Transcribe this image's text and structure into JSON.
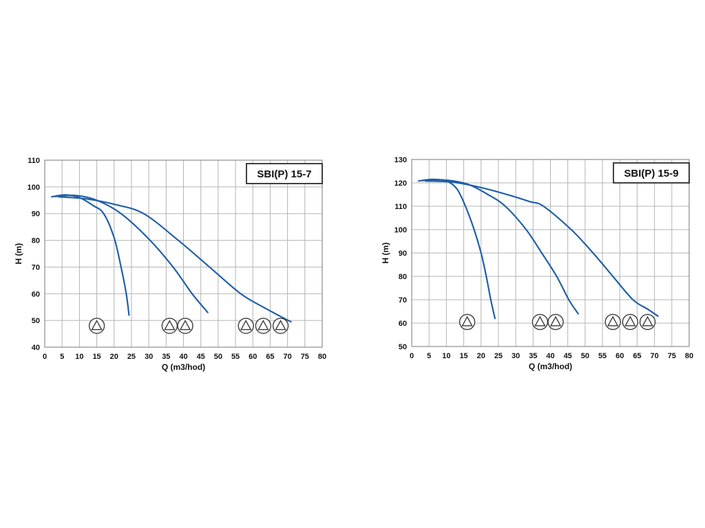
{
  "page": {
    "background": "#ffffff"
  },
  "style": {
    "curve_color": "#1f5fa8",
    "grid_color": "#b3b3b3",
    "frame_color": "#8c8c8c",
    "icon_color": "#3a3a3a",
    "text_color": "#111111"
  },
  "chart_data": [
    {
      "type": "line",
      "title": "SBI(P) 15-7",
      "xlabel": "Q (m3/hod)",
      "ylabel": "H (m)",
      "xlim": [
        0,
        80
      ],
      "ylim": [
        40,
        110
      ],
      "xticks": [
        0,
        5,
        10,
        15,
        20,
        25,
        30,
        35,
        40,
        45,
        50,
        55,
        60,
        65,
        70,
        75,
        80
      ],
      "yticks": [
        40,
        50,
        60,
        70,
        80,
        90,
        100,
        110
      ],
      "grid": true,
      "legend": "none",
      "series": [
        {
          "name": "1-pump",
          "points": [
            [
              2,
              96.3
            ],
            [
              6,
              97
            ],
            [
              10,
              96
            ],
            [
              14,
              93
            ],
            [
              17,
              90
            ],
            [
              20,
              81
            ],
            [
              22,
              70
            ],
            [
              23.5,
              60
            ],
            [
              24.3,
              52
            ]
          ]
        },
        {
          "name": "2-pumps",
          "points": [
            [
              3,
              96.4
            ],
            [
              9,
              96.8
            ],
            [
              15,
              95
            ],
            [
              22,
              90
            ],
            [
              30,
              80.5
            ],
            [
              37,
              70
            ],
            [
              42.5,
              60
            ],
            [
              47,
              53
            ]
          ]
        },
        {
          "name": "3-pumps",
          "points": [
            [
              4,
              96.3
            ],
            [
              12,
              95.5
            ],
            [
              20,
              93.5
            ],
            [
              28.5,
              90
            ],
            [
              38.5,
              80
            ],
            [
              47.5,
              70
            ],
            [
              56.5,
              60
            ],
            [
              63,
              55
            ],
            [
              68,
              51.5
            ],
            [
              71,
              49.5
            ]
          ]
        }
      ],
      "pump_icons": [
        {
          "x": 15,
          "y": 48,
          "group": "1-pump"
        },
        {
          "x": 36,
          "y": 48,
          "group": "2-pumps"
        },
        {
          "x": 40.5,
          "y": 48,
          "group": "2-pumps"
        },
        {
          "x": 58,
          "y": 48,
          "group": "3-pumps"
        },
        {
          "x": 63,
          "y": 48,
          "group": "3-pumps"
        },
        {
          "x": 68,
          "y": 48,
          "group": "3-pumps"
        }
      ]
    },
    {
      "type": "line",
      "title": "SBI(P) 15-9",
      "xlabel": "Q (m3/hod)",
      "ylabel": "H (m)",
      "xlim": [
        0,
        80
      ],
      "ylim": [
        50,
        130
      ],
      "xticks": [
        0,
        5,
        10,
        15,
        20,
        25,
        30,
        35,
        40,
        45,
        50,
        55,
        60,
        65,
        70,
        75,
        80
      ],
      "yticks": [
        50,
        60,
        70,
        80,
        90,
        100,
        110,
        120,
        130
      ],
      "grid": true,
      "legend": "none",
      "series": [
        {
          "name": "1-pump",
          "points": [
            [
              2,
              120.8
            ],
            [
              6,
              121.5
            ],
            [
              10,
              120.8
            ],
            [
              13,
              117.5
            ],
            [
              15.5,
              110
            ],
            [
              18,
              100
            ],
            [
              20,
              90
            ],
            [
              21.5,
              80
            ],
            [
              22.8,
              70
            ],
            [
              24,
              62
            ]
          ]
        },
        {
          "name": "2-pumps",
          "points": [
            [
              3,
              121
            ],
            [
              9,
              121.3
            ],
            [
              16,
              119.5
            ],
            [
              22,
              115
            ],
            [
              27,
              110
            ],
            [
              33,
              100
            ],
            [
              37.5,
              90
            ],
            [
              41.8,
              80
            ],
            [
              45.3,
              70
            ],
            [
              48,
              64
            ]
          ]
        },
        {
          "name": "3-pumps",
          "points": [
            [
              4,
              120.8
            ],
            [
              12,
              120.3
            ],
            [
              20,
              118
            ],
            [
              28,
              114.8
            ],
            [
              34,
              112
            ],
            [
              38,
              110
            ],
            [
              46,
              100
            ],
            [
              52.3,
              90
            ],
            [
              58,
              80
            ],
            [
              63.8,
              70
            ],
            [
              68,
              66
            ],
            [
              71,
              63
            ]
          ]
        }
      ],
      "pump_icons": [
        {
          "x": 16,
          "y": 60.5,
          "group": "1-pump"
        },
        {
          "x": 37,
          "y": 60.5,
          "group": "2-pumps"
        },
        {
          "x": 41.5,
          "y": 60.5,
          "group": "2-pumps"
        },
        {
          "x": 58,
          "y": 60.5,
          "group": "3-pumps"
        },
        {
          "x": 63,
          "y": 60.5,
          "group": "3-pumps"
        },
        {
          "x": 68,
          "y": 60.5,
          "group": "3-pumps"
        }
      ]
    }
  ]
}
